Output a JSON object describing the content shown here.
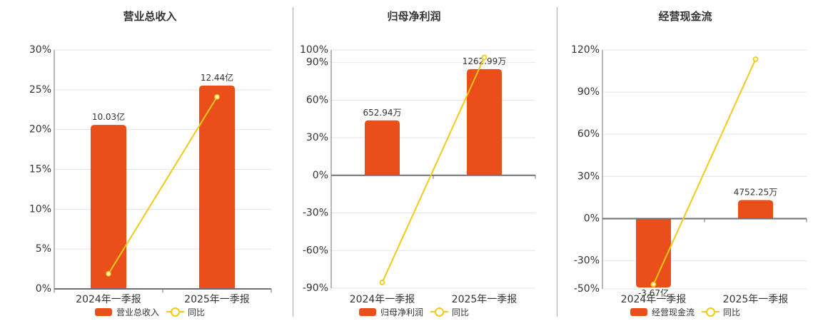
{
  "colors": {
    "bar": "#E94E1B",
    "line": "#F5C918",
    "grid": "#E0E6F1",
    "axis": "#6E7079",
    "text": "#333333",
    "divider": "#AAAAAA"
  },
  "chart_data": [
    {
      "type": "bar+line",
      "title": "营业总收入",
      "categories": [
        "2024年一季报",
        "2025年一季报"
      ],
      "series": [
        {
          "name": "营业总收入",
          "type": "bar",
          "unit": "亿",
          "values": [
            10.03,
            12.44
          ]
        },
        {
          "name": "同比",
          "type": "line",
          "unit": "%",
          "values": [
            1.9,
            24.1
          ]
        }
      ],
      "bar_labels": [
        "10.03亿",
        "12.44亿"
      ],
      "y_axis": {
        "min": 0,
        "max": 30,
        "ticks": [
          0,
          5,
          10,
          15,
          20,
          25,
          30
        ],
        "tick_labels": [
          "0%",
          "5%",
          "10%",
          "15%",
          "20%",
          "25%",
          "30%"
        ]
      },
      "bar_axis": {
        "min": 0,
        "max": 14.62
      },
      "grid": true,
      "legend": [
        {
          "label": "营业总收入",
          "symbol": "bar"
        },
        {
          "label": "同比",
          "symbol": "line"
        }
      ],
      "legend_position": "bottom"
    },
    {
      "type": "bar+line",
      "title": "归母净利润",
      "categories": [
        "2024年一季报",
        "2025年一季报"
      ],
      "series": [
        {
          "name": "归母净利润",
          "type": "bar",
          "unit": "万",
          "values": [
            652.94,
            1262.99
          ]
        },
        {
          "name": "同比",
          "type": "line",
          "unit": "%",
          "values": [
            -85.4,
            94.0
          ]
        }
      ],
      "bar_labels": [
        "652.94万",
        "1262.99万"
      ],
      "y_axis": {
        "min": -90,
        "max": 100,
        "ticks": [
          -90,
          -60,
          -30,
          0,
          30,
          60,
          90,
          100
        ],
        "tick_labels": [
          "-90%",
          "-60%",
          "-30%",
          "0%",
          "30%",
          "60%",
          "90%",
          "100%"
        ]
      },
      "bar_axis": {
        "min": -1341.6,
        "max": 1490.7
      },
      "grid": true,
      "legend": [
        {
          "label": "归母净利润",
          "symbol": "bar"
        },
        {
          "label": "同比",
          "symbol": "line"
        }
      ],
      "legend_position": "bottom"
    },
    {
      "type": "bar+line",
      "title": "经营现金流",
      "categories": [
        "2024年一季报",
        "2025年一季报"
      ],
      "series": [
        {
          "name": "经营现金流",
          "type": "bar",
          "unit": "万",
          "values": [
            -36700,
            4752.25
          ]
        },
        {
          "name": "同比",
          "type": "line",
          "unit": "%",
          "values": [
            -46.8,
            113.4
          ]
        }
      ],
      "bar_labels": [
        "-3.67亿",
        "4752.25万"
      ],
      "y_axis": {
        "min": -50,
        "max": 120,
        "ticks": [
          -50,
          -30,
          0,
          30,
          60,
          90,
          120
        ],
        "tick_labels": [
          "-50%",
          "-30%",
          "0%",
          "30%",
          "60%",
          "90%",
          "120%"
        ]
      },
      "bar_axis": {
        "min": -18010,
        "max": 43225
      },
      "grid": true,
      "legend": [
        {
          "label": "经营现金流",
          "symbol": "bar"
        },
        {
          "label": "同比",
          "symbol": "line"
        }
      ],
      "legend_position": "bottom"
    }
  ]
}
